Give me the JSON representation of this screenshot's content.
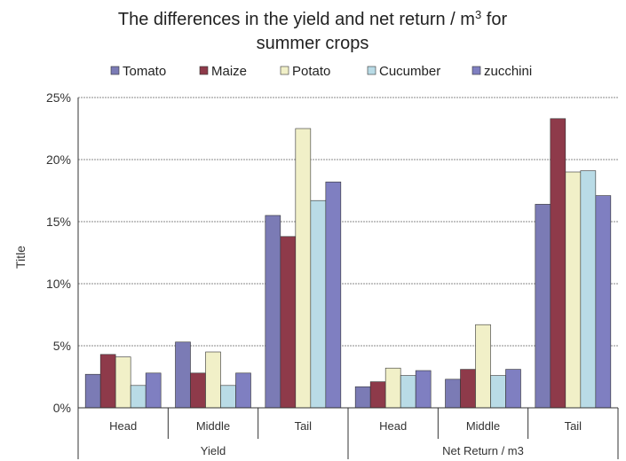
{
  "chart_data": {
    "type": "bar",
    "title_line1": "The differences in the yield and net return / m",
    "title_sup": "3",
    "title_after_sup": " for",
    "title_line2": "summer crops",
    "ylabel": "Title",
    "ylim": [
      0,
      25
    ],
    "yticks": [
      "0%",
      "5%",
      "10%",
      "15%",
      "20%",
      "25%"
    ],
    "grid": true,
    "legend_position": "top",
    "groups": [
      "Yield",
      "Net Return / m3"
    ],
    "categories": [
      "Head",
      "Middle",
      "Tail",
      "Head",
      "Middle",
      "Tail"
    ],
    "series": [
      {
        "name": "Tomato",
        "color": "#7b7bb5",
        "values": [
          2.7,
          5.3,
          15.5,
          1.7,
          2.3,
          16.4
        ]
      },
      {
        "name": "Maize",
        "color": "#8e3a4a",
        "values": [
          4.3,
          2.8,
          13.8,
          2.1,
          3.1,
          23.3
        ]
      },
      {
        "name": "Potato",
        "color": "#f1f0c8",
        "values": [
          4.1,
          4.5,
          22.5,
          3.2,
          6.7,
          19.0
        ]
      },
      {
        "name": "Cucumber",
        "color": "#b9dbe6",
        "values": [
          1.8,
          1.8,
          16.7,
          2.6,
          2.6,
          19.1
        ]
      },
      {
        "name": "zucchini",
        "color": "#7f7fc1",
        "values": [
          2.8,
          2.8,
          18.2,
          3.0,
          3.1,
          17.1
        ]
      }
    ]
  }
}
